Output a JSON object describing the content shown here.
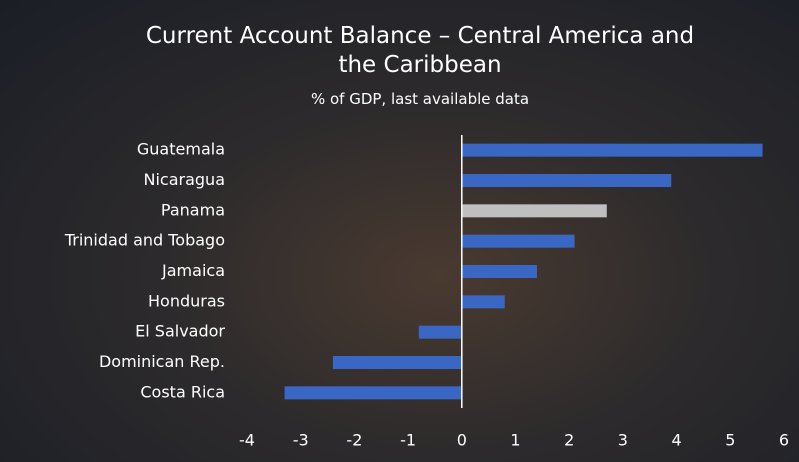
{
  "chart_data": {
    "type": "barh",
    "title": "Current Account Balance – Central America and the Caribbean",
    "subtitle": "% of GDP, last available data",
    "categories": [
      "Guatemala",
      "Nicaragua",
      "Panama",
      "Trinidad and Tobago",
      "Jamaica",
      "Honduras",
      "El Salvador",
      "Dominican Rep.",
      "Costa Rica"
    ],
    "values": [
      5.6,
      3.9,
      2.7,
      2.1,
      1.4,
      0.8,
      -0.8,
      -2.4,
      -3.3
    ],
    "colors": [
      "#3b67c4",
      "#3b67c4",
      "#bfbfbf",
      "#3b67c4",
      "#3b67c4",
      "#3b67c4",
      "#3b67c4",
      "#3b67c4",
      "#3b67c4"
    ],
    "xlim": [
      -4,
      6
    ],
    "xticks": [
      -4,
      -3,
      -2,
      -1,
      0,
      1,
      2,
      3,
      4,
      5,
      6
    ],
    "grid": false
  }
}
